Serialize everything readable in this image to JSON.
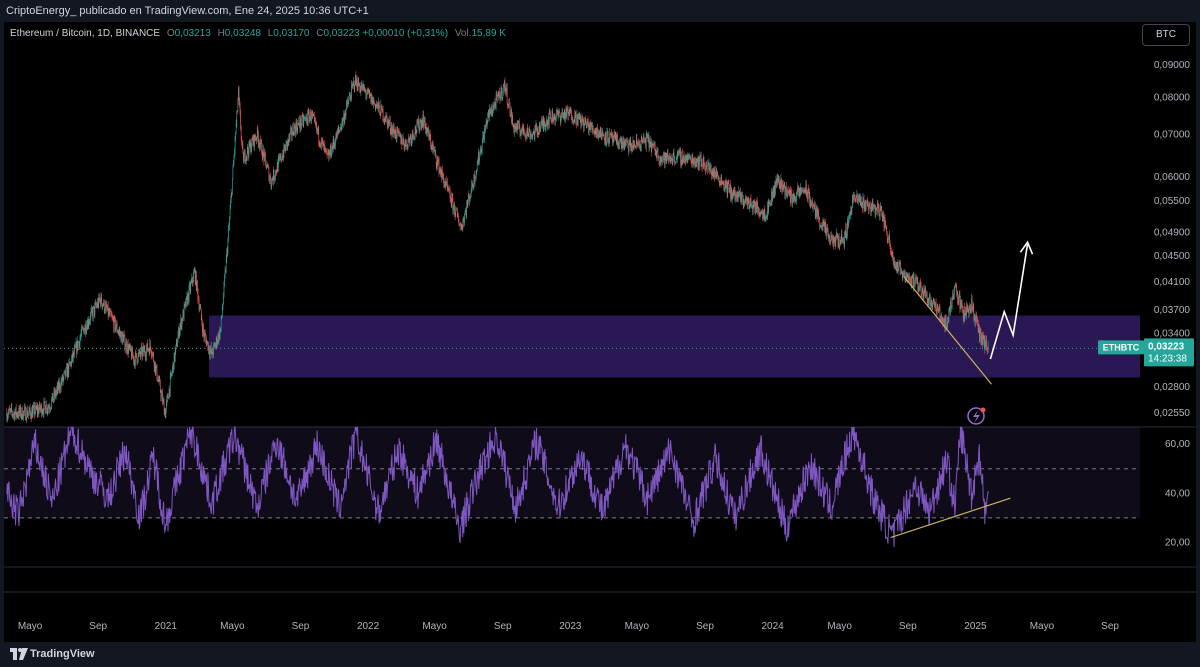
{
  "header": {
    "title": "CriptoEnergy_ publicado en TradingView.com, Ene 24, 2025 10:36 UTC+1"
  },
  "legend": {
    "symbol": "Ethereum / Bitcoin, 1D, BINANCE",
    "o_label": "O",
    "o_value": "0,03213",
    "h_label": "H",
    "h_value": "0,03248",
    "l_label": "L",
    "l_value": "0,03170",
    "c_label": "C",
    "c_value": "0,03223",
    "change": "+0,00010 (+0,31%)",
    "vol_label": "Vol.",
    "vol_value": "15,89 K"
  },
  "currency_button": "BTC",
  "price_tag": {
    "symbol": "ETHBTC",
    "price": "0,03223",
    "countdown": "14:23:38"
  },
  "footer": {
    "brand": "TradingView"
  },
  "colors": {
    "background": "#000000",
    "up": "#26a69a",
    "down": "#ef5350",
    "zone": "#2d1b5c",
    "rsi": "#7e57c2",
    "trendline": "#c8b35a",
    "arrow": "#ffffff",
    "tag": "#26a69a"
  },
  "icons": {
    "footer_logo": "tradingview-logo-icon",
    "alert": "lightning-alert-icon"
  },
  "chart_data": [
    {
      "type": "candlestick",
      "symbol": "ETHBTC",
      "timeframe": "1D",
      "y_scale": "log",
      "yticks": [
        {
          "label": "0,09000",
          "value": 0.09
        },
        {
          "label": "0,08000",
          "value": 0.08
        },
        {
          "label": "0,07000",
          "value": 0.07
        },
        {
          "label": "0,06000",
          "value": 0.06
        },
        {
          "label": "0,05500",
          "value": 0.055
        },
        {
          "label": "0,04900",
          "value": 0.049
        },
        {
          "label": "0,04500",
          "value": 0.045
        },
        {
          "label": "0,04100",
          "value": 0.041
        },
        {
          "label": "0,03700",
          "value": 0.037
        },
        {
          "label": "0,03400",
          "value": 0.034
        },
        {
          "label": "0,02800",
          "value": 0.028
        },
        {
          "label": "0,02550",
          "value": 0.0255
        }
      ],
      "xticks": [
        {
          "label": "Mayo",
          "date": "2020-05-01"
        },
        {
          "label": "Sep",
          "date": "2020-09-01"
        },
        {
          "label": "2021",
          "date": "2021-01-01"
        },
        {
          "label": "Mayo",
          "date": "2021-05-01"
        },
        {
          "label": "Sep",
          "date": "2021-09-01"
        },
        {
          "label": "2022",
          "date": "2022-01-01"
        },
        {
          "label": "Mayo",
          "date": "2022-05-01"
        },
        {
          "label": "Sep",
          "date": "2022-09-01"
        },
        {
          "label": "2023",
          "date": "2023-01-01"
        },
        {
          "label": "Mayo",
          "date": "2023-05-01"
        },
        {
          "label": "Sep",
          "date": "2023-09-01"
        },
        {
          "label": "2024",
          "date": "2024-01-01"
        },
        {
          "label": "Mayo",
          "date": "2024-05-01"
        },
        {
          "label": "Sep",
          "date": "2024-09-01"
        },
        {
          "label": "2025",
          "date": "2025-01-01"
        },
        {
          "label": "Mayo",
          "date": "2025-05-01"
        },
        {
          "label": "Sep",
          "date": "2025-09-01"
        }
      ],
      "xlim": [
        "2020-03-15",
        "2025-10-25"
      ],
      "ylim": [
        0.0245,
        0.095
      ],
      "price_path": [
        [
          "2020-03-20",
          0.0255
        ],
        [
          "2020-05-01",
          0.0255
        ],
        [
          "2020-06-05",
          0.0262
        ],
        [
          "2020-07-10",
          0.03
        ],
        [
          "2020-08-05",
          0.0345
        ],
        [
          "2020-09-05",
          0.0385
        ],
        [
          "2020-10-10",
          0.034
        ],
        [
          "2020-11-05",
          0.031
        ],
        [
          "2020-12-05",
          0.0325
        ],
        [
          "2020-12-31",
          0.0255
        ],
        [
          "2021-01-25",
          0.0345
        ],
        [
          "2021-02-22",
          0.0425
        ],
        [
          "2021-03-10",
          0.034
        ],
        [
          "2021-03-25",
          0.0315
        ],
        [
          "2021-04-10",
          0.0345
        ],
        [
          "2021-04-25",
          0.05
        ],
        [
          "2021-05-12",
          0.081
        ],
        [
          "2021-05-20",
          0.064
        ],
        [
          "2021-06-15",
          0.07
        ],
        [
          "2021-07-10",
          0.059
        ],
        [
          "2021-08-01",
          0.0655
        ],
        [
          "2021-08-20",
          0.0715
        ],
        [
          "2021-09-20",
          0.075
        ],
        [
          "2021-10-20",
          0.064
        ],
        [
          "2021-11-15",
          0.073
        ],
        [
          "2021-12-08",
          0.085
        ],
        [
          "2021-12-25",
          0.082
        ],
        [
          "2022-01-25",
          0.076
        ],
        [
          "2022-02-15",
          0.071
        ],
        [
          "2022-03-10",
          0.0675
        ],
        [
          "2022-04-10",
          0.074
        ],
        [
          "2022-05-15",
          0.06
        ],
        [
          "2022-06-18",
          0.05
        ],
        [
          "2022-07-10",
          0.059
        ],
        [
          "2022-08-05",
          0.0745
        ],
        [
          "2022-09-05",
          0.0835
        ],
        [
          "2022-09-20",
          0.072
        ],
        [
          "2022-10-25",
          0.07
        ],
        [
          "2022-11-25",
          0.0745
        ],
        [
          "2022-12-31",
          0.0755
        ],
        [
          "2023-02-15",
          0.071
        ],
        [
          "2023-03-20",
          0.0685
        ],
        [
          "2023-04-20",
          0.067
        ],
        [
          "2023-05-20",
          0.0685
        ],
        [
          "2023-06-15",
          0.064
        ],
        [
          "2023-07-15",
          0.0645
        ],
        [
          "2023-08-25",
          0.0635
        ],
        [
          "2023-09-25",
          0.06
        ],
        [
          "2023-10-20",
          0.0565
        ],
        [
          "2023-11-20",
          0.0545
        ],
        [
          "2023-12-20",
          0.0525
        ],
        [
          "2024-01-10",
          0.0595
        ],
        [
          "2024-02-05",
          0.0555
        ],
        [
          "2024-02-28",
          0.0575
        ],
        [
          "2024-03-25",
          0.0515
        ],
        [
          "2024-04-15",
          0.0475
        ],
        [
          "2024-05-10",
          0.048
        ],
        [
          "2024-05-25",
          0.0555
        ],
        [
          "2024-06-15",
          0.0545
        ],
        [
          "2024-07-15",
          0.053
        ],
        [
          "2024-08-10",
          0.0435
        ],
        [
          "2024-09-05",
          0.0415
        ],
        [
          "2024-10-01",
          0.0395
        ],
        [
          "2024-10-20",
          0.0375
        ],
        [
          "2024-11-10",
          0.035
        ],
        [
          "2024-11-25",
          0.0405
        ],
        [
          "2024-12-10",
          0.0365
        ],
        [
          "2024-12-25",
          0.0378
        ],
        [
          "2025-01-10",
          0.0335
        ],
        [
          "2025-01-24",
          0.03223
        ]
      ],
      "support_zone": {
        "top": 0.0363,
        "bottom": 0.029,
        "start": "2021-03-20",
        "end": "2025-10-25"
      },
      "last_price_line": 0.03223,
      "trendline": [
        [
          "2024-08-25",
          0.0418
        ],
        [
          "2025-01-30",
          0.0283
        ]
      ],
      "projection_arrow": [
        [
          "2025-01-28",
          0.031
        ],
        [
          "2025-02-22",
          0.0368
        ],
        [
          "2025-03-10",
          0.0338
        ],
        [
          "2025-04-05",
          0.047
        ]
      ]
    },
    {
      "type": "line",
      "name": "RSI",
      "yticks": [
        {
          "label": "60,00",
          "value": 60
        },
        {
          "label": "40,00",
          "value": 40
        },
        {
          "label": "20,00",
          "value": 20
        }
      ],
      "bands": {
        "upper": 50,
        "lower": 30
      },
      "ylim": [
        10,
        67
      ],
      "values_path": [
        [
          "2020-03-20",
          40
        ],
        [
          "2020-04-10",
          31
        ],
        [
          "2020-05-10",
          60
        ],
        [
          "2020-06-10",
          36
        ],
        [
          "2020-07-15",
          66
        ],
        [
          "2020-08-20",
          48
        ],
        [
          "2020-09-20",
          38
        ],
        [
          "2020-10-20",
          58
        ],
        [
          "2020-11-15",
          30
        ],
        [
          "2020-12-10",
          55
        ],
        [
          "2020-12-31",
          27
        ],
        [
          "2021-02-15",
          66
        ],
        [
          "2021-03-25",
          36
        ],
        [
          "2021-05-05",
          64
        ],
        [
          "2021-06-15",
          34
        ],
        [
          "2021-07-20",
          62
        ],
        [
          "2021-08-25",
          36
        ],
        [
          "2021-10-01",
          60
        ],
        [
          "2021-11-10",
          34
        ],
        [
          "2021-12-10",
          64
        ],
        [
          "2022-01-20",
          32
        ],
        [
          "2022-02-25",
          58
        ],
        [
          "2022-04-01",
          40
        ],
        [
          "2022-05-05",
          62
        ],
        [
          "2022-06-15",
          25
        ],
        [
          "2022-07-20",
          48
        ],
        [
          "2022-08-20",
          64
        ],
        [
          "2022-09-25",
          34
        ],
        [
          "2022-11-01",
          62
        ],
        [
          "2022-12-10",
          34
        ],
        [
          "2023-01-20",
          56
        ],
        [
          "2023-03-01",
          32
        ],
        [
          "2023-04-10",
          60
        ],
        [
          "2023-05-20",
          38
        ],
        [
          "2023-07-01",
          58
        ],
        [
          "2023-08-10",
          28
        ],
        [
          "2023-09-20",
          54
        ],
        [
          "2023-10-25",
          30
        ],
        [
          "2023-12-10",
          58
        ],
        [
          "2024-01-25",
          26
        ],
        [
          "2024-03-10",
          52
        ],
        [
          "2024-04-15",
          34
        ],
        [
          "2024-05-25",
          66
        ],
        [
          "2024-07-01",
          38
        ],
        [
          "2024-08-05",
          22
        ],
        [
          "2024-09-15",
          44
        ],
        [
          "2024-10-10",
          32
        ],
        [
          "2024-11-10",
          54
        ],
        [
          "2024-11-25",
          34
        ],
        [
          "2024-12-05",
          66
        ],
        [
          "2024-12-25",
          40
        ],
        [
          "2025-01-08",
          56
        ],
        [
          "2025-01-18",
          33
        ],
        [
          "2025-01-24",
          37
        ]
      ],
      "trendline": [
        [
          "2024-08-01",
          22
        ],
        [
          "2025-03-05",
          38
        ]
      ]
    }
  ]
}
